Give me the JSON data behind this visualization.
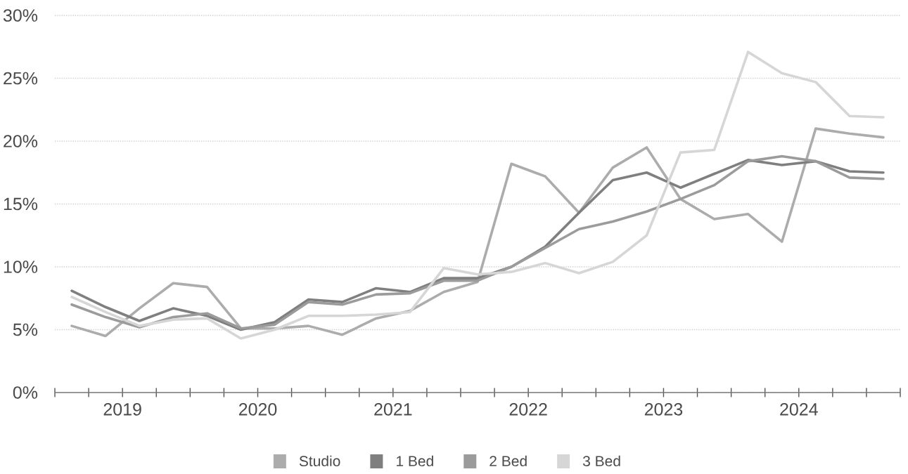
{
  "chart_data": {
    "type": "line",
    "x": [
      2019.125,
      2019.375,
      2019.625,
      2019.875,
      2020.125,
      2020.375,
      2020.625,
      2020.875,
      2021.125,
      2021.375,
      2021.625,
      2021.875,
      2022.125,
      2022.375,
      2022.625,
      2022.875,
      2023.125,
      2023.375,
      2023.625,
      2023.875,
      2024.125,
      2024.375,
      2024.625,
      2024.875,
      2025.125
    ],
    "series": [
      {
        "name": "Studio",
        "color": "#acacac",
        "values": [
          5.3,
          4.5,
          6.7,
          8.7,
          8.4,
          5.1,
          5.1,
          5.3,
          4.6,
          5.9,
          6.5,
          8.0,
          8.8,
          18.2,
          17.2,
          14.3,
          17.9,
          19.5,
          15.4,
          13.8,
          14.2,
          12.0,
          21.0,
          20.6,
          20.3
        ]
      },
      {
        "name": "1 Bed",
        "color": "#7f7f7f",
        "values": [
          8.1,
          6.8,
          5.7,
          6.7,
          6.1,
          5.0,
          5.6,
          7.4,
          7.2,
          8.3,
          8.0,
          9.1,
          9.1,
          10.0,
          11.6,
          14.3,
          16.9,
          17.5,
          16.3,
          17.4,
          18.5,
          18.1,
          18.4,
          17.6,
          17.5
        ]
      },
      {
        "name": "2 Bed",
        "color": "#9b9b9b",
        "values": [
          7.0,
          6.0,
          5.2,
          6.0,
          6.3,
          5.1,
          5.4,
          7.2,
          7.0,
          7.8,
          7.9,
          8.9,
          8.9,
          10.0,
          11.5,
          13.0,
          13.6,
          14.4,
          15.4,
          16.5,
          18.4,
          18.8,
          18.4,
          17.1,
          17.0
        ]
      },
      {
        "name": "3 Bed",
        "color": "#d6d6d6",
        "values": [
          7.6,
          6.4,
          5.3,
          5.8,
          5.9,
          4.3,
          5.0,
          6.1,
          6.1,
          6.2,
          6.4,
          9.9,
          9.4,
          9.6,
          10.3,
          9.5,
          10.4,
          12.5,
          19.1,
          19.3,
          27.1,
          25.4,
          24.7,
          22.0,
          21.9
        ]
      }
    ],
    "xlim": [
      2019,
      2025.25
    ],
    "xticks": [
      {
        "value": 2019,
        "label": null
      },
      {
        "value": 2019.25,
        "label": null
      },
      {
        "value": 2019.5,
        "label": "2019"
      },
      {
        "value": 2019.75,
        "label": null
      },
      {
        "value": 2020,
        "label": null
      },
      {
        "value": 2020.25,
        "label": null
      },
      {
        "value": 2020.5,
        "label": "2020"
      },
      {
        "value": 2020.75,
        "label": null
      },
      {
        "value": 2021,
        "label": null
      },
      {
        "value": 2021.25,
        "label": null
      },
      {
        "value": 2021.5,
        "label": "2021"
      },
      {
        "value": 2021.75,
        "label": null
      },
      {
        "value": 2022,
        "label": null
      },
      {
        "value": 2022.25,
        "label": null
      },
      {
        "value": 2022.5,
        "label": "2022"
      },
      {
        "value": 2022.75,
        "label": null
      },
      {
        "value": 2023,
        "label": null
      },
      {
        "value": 2023.25,
        "label": null
      },
      {
        "value": 2023.5,
        "label": "2023"
      },
      {
        "value": 2023.75,
        "label": null
      },
      {
        "value": 2024,
        "label": null
      },
      {
        "value": 2024.25,
        "label": null
      },
      {
        "value": 2024.5,
        "label": "2024"
      },
      {
        "value": 2024.75,
        "label": null
      },
      {
        "value": 2025,
        "label": null
      },
      {
        "value": 2025.25,
        "label": null
      }
    ],
    "ylim": [
      0,
      30
    ],
    "yticks": [
      {
        "value": 0,
        "label": "0%"
      },
      {
        "value": 5,
        "label": "5%"
      },
      {
        "value": 10,
        "label": "10%"
      },
      {
        "value": 15,
        "label": "15%"
      },
      {
        "value": 20,
        "label": "20%"
      },
      {
        "value": 25,
        "label": "25%"
      },
      {
        "value": 30,
        "label": "30%"
      }
    ],
    "grid": "y",
    "legend": "bottom",
    "marker": "none",
    "line_style": "solid"
  }
}
